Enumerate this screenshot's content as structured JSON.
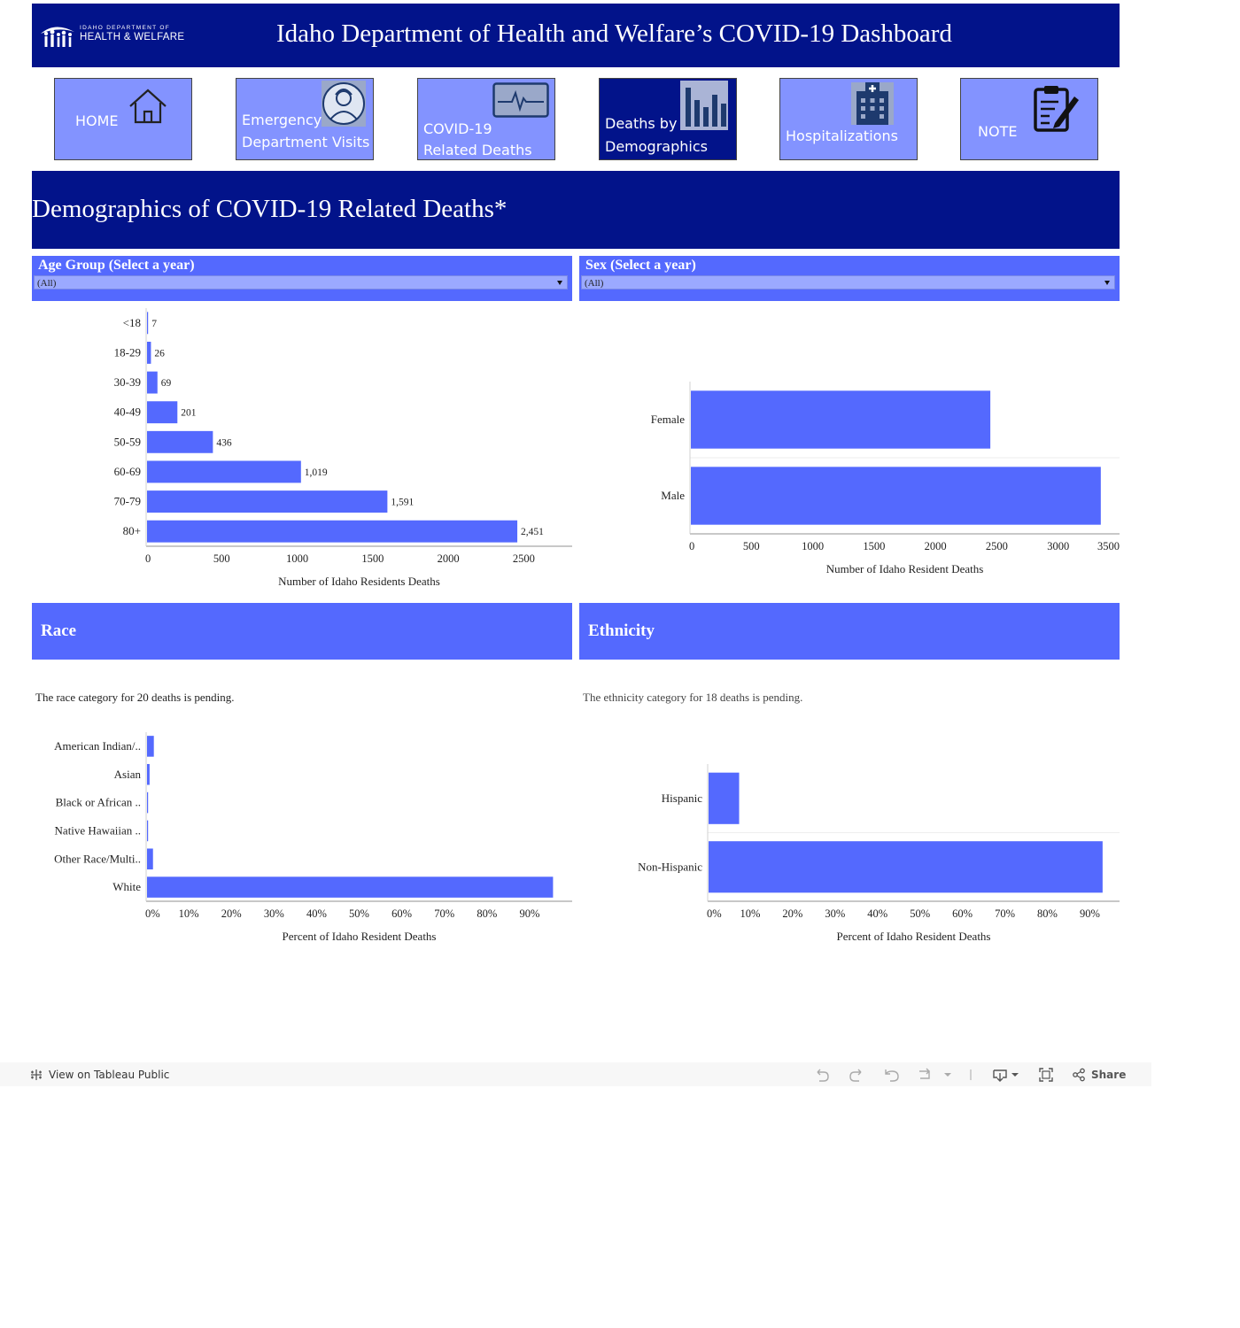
{
  "header": {
    "logo_line1": "IDAHO DEPARTMENT OF",
    "logo_line2": "HEALTH & WELFARE",
    "title": "Idaho Department of Health and Welfare’s COVID-19 Dashboard"
  },
  "nav": [
    {
      "label1": "HOME",
      "label2": "",
      "icon": "house-icon"
    },
    {
      "label1": "Emergency",
      "label2": "Department Visits",
      "icon": "nurse-icon"
    },
    {
      "label1": "COVID-19",
      "label2": "Related Deaths",
      "icon": "heartbeat-monitor-icon"
    },
    {
      "label1": "Deaths by",
      "label2": "Demographics",
      "icon": "bar-chart-icon"
    },
    {
      "label1": "Hospitalizations",
      "label2": "",
      "icon": "hospital-icon"
    },
    {
      "label1": "NOTE",
      "label2": "",
      "icon": "clipboard-edit-icon"
    }
  ],
  "section_title": "Demographics of COVID-19 Related Deaths*",
  "filters": {
    "age": {
      "title": "Age Group (Select a year)",
      "value": "(All)"
    },
    "sex": {
      "title": "Sex  (Select a year)",
      "value": "(All)"
    }
  },
  "panels": {
    "race": {
      "title": "Race",
      "note": "The race category for 20 deaths is pending."
    },
    "ethnicity": {
      "title": "Ethnicity",
      "note": "The ethnicity category for 18 deaths is pending."
    }
  },
  "colors": {
    "navy": "#02138a",
    "accent": "#5469fe",
    "button": "#8393ff",
    "bar": "#5469fe"
  },
  "chart_data": [
    {
      "type": "bar",
      "orientation": "horizontal",
      "categories": [
        "<18",
        "18-29",
        "30-39",
        "40-49",
        "50-59",
        "60-69",
        "70-79",
        "80+"
      ],
      "values": [
        7,
        26,
        69,
        201,
        436,
        1019,
        1591,
        2451
      ],
      "labels": [
        "7",
        "26",
        "69",
        "201",
        "436",
        "1,019",
        "1,591",
        "2,451"
      ],
      "xlabel": "Number of Idaho Residents Deaths",
      "xticks": [
        0,
        500,
        1000,
        1500,
        2000,
        2500
      ],
      "xlim": [
        0,
        2820
      ]
    },
    {
      "type": "bar",
      "orientation": "horizontal",
      "categories": [
        "Female",
        "Male"
      ],
      "values": [
        2440,
        3340
      ],
      "xlabel": "Number of Idaho Resident Deaths",
      "xticks": [
        0,
        500,
        1000,
        1500,
        2000,
        2500,
        3000,
        3500
      ],
      "xlim": [
        0,
        3500
      ]
    },
    {
      "type": "bar",
      "orientation": "horizontal",
      "categories": [
        "American Indian/..",
        "Asian",
        "Black or African ..",
        "Native Hawaiian ..",
        "Other Race/Multi..",
        "White"
      ],
      "values": [
        1.6,
        0.6,
        0.2,
        0.1,
        1.4,
        95.3
      ],
      "xlabel": "Percent of Idaho Resident Deaths",
      "xticks": [
        "0%",
        "10%",
        "20%",
        "30%",
        "40%",
        "50%",
        "60%",
        "70%",
        "80%",
        "90%"
      ],
      "xlim": [
        0,
        100
      ]
    },
    {
      "type": "bar",
      "orientation": "horizontal",
      "categories": [
        "Hispanic",
        "Non-Hispanic"
      ],
      "values": [
        7.2,
        92.8
      ],
      "xlabel": "Percent of Idaho Resident Deaths",
      "xticks": [
        "0%",
        "10%",
        "20%",
        "30%",
        "40%",
        "50%",
        "60%",
        "70%",
        "80%",
        "90%"
      ],
      "xlim": [
        0,
        97
      ]
    }
  ],
  "toolbar": {
    "view_on": "View on Tableau Public",
    "share": "Share"
  }
}
